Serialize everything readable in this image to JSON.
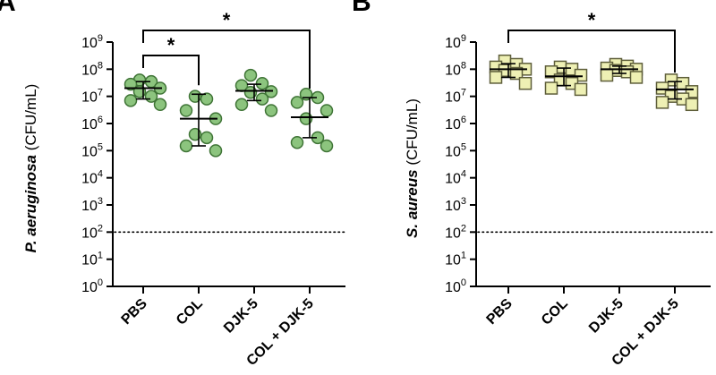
{
  "chart_data": [
    {
      "panel": "A",
      "type": "scatter",
      "ylabel_italic": "P. aeruginosa",
      "ylabel_rest": " (CFU/mL)",
      "yscale": "log",
      "ylim": [
        1,
        1000000000
      ],
      "yticks": [
        {
          "base": "10",
          "exp": "0",
          "value": 1
        },
        {
          "base": "10",
          "exp": "1",
          "value": 10
        },
        {
          "base": "10",
          "exp": "2",
          "value": 100
        },
        {
          "base": "10",
          "exp": "3",
          "value": 1000
        },
        {
          "base": "10",
          "exp": "4",
          "value": 10000
        },
        {
          "base": "10",
          "exp": "5",
          "value": 100000
        },
        {
          "base": "10",
          "exp": "6",
          "value": 1000000
        },
        {
          "base": "10",
          "exp": "7",
          "value": 10000000
        },
        {
          "base": "10",
          "exp": "8",
          "value": 100000000
        },
        {
          "base": "10",
          "exp": "9",
          "value": 1000000000
        }
      ],
      "categories": [
        "PBS",
        "COL",
        "DJK-5",
        "COL + DJK-5"
      ],
      "marker": "circle",
      "fill": "#8cc47e",
      "stroke": "#3f7436",
      "detection_limit": 100,
      "groups": [
        {
          "name": "PBS",
          "points": [
            40000000,
            35000000,
            28000000,
            20000000,
            15000000,
            10000000,
            7000000,
            5000000
          ],
          "center": 20000000,
          "err_low": 8000000,
          "err_high": 35000000
        },
        {
          "name": "COL",
          "points": [
            10000000,
            8000000,
            3000000,
            1500000,
            400000,
            300000,
            150000,
            100000
          ],
          "center": 1500000,
          "err_low": 150000,
          "err_high": 12000000
        },
        {
          "name": "DJK-5",
          "points": [
            60000000,
            30000000,
            25000000,
            15000000,
            14000000,
            8000000,
            5000000,
            3000000
          ],
          "center": 16000000,
          "err_low": 7000000,
          "err_high": 28000000
        },
        {
          "name": "COL + DJK-5",
          "points": [
            12000000,
            9000000,
            6000000,
            3000000,
            1500000,
            300000,
            200000,
            150000
          ],
          "center": 1700000,
          "err_low": 300000,
          "err_high": 9000000
        }
      ],
      "significance": [
        {
          "from": 0,
          "to": 3,
          "label": "*"
        },
        {
          "from": 0,
          "to": 1,
          "label": "*"
        }
      ]
    },
    {
      "panel": "B",
      "type": "scatter",
      "ylabel_italic": "S. aureus",
      "ylabel_rest": " (CFU/mL)",
      "yscale": "log",
      "ylim": [
        1,
        1000000000
      ],
      "yticks": [
        {
          "base": "10",
          "exp": "0",
          "value": 1
        },
        {
          "base": "10",
          "exp": "1",
          "value": 10
        },
        {
          "base": "10",
          "exp": "2",
          "value": 100
        },
        {
          "base": "10",
          "exp": "3",
          "value": 1000
        },
        {
          "base": "10",
          "exp": "4",
          "value": 10000
        },
        {
          "base": "10",
          "exp": "5",
          "value": 100000
        },
        {
          "base": "10",
          "exp": "6",
          "value": 1000000
        },
        {
          "base": "10",
          "exp": "7",
          "value": 10000000
        },
        {
          "base": "10",
          "exp": "8",
          "value": 100000000
        },
        {
          "base": "10",
          "exp": "9",
          "value": 1000000000
        }
      ],
      "categories": [
        "PBS",
        "COL",
        "DJK-5",
        "COL + DJK-5"
      ],
      "marker": "square",
      "fill": "#eef0b4",
      "stroke": "#5e5e3a",
      "detection_limit": 100,
      "groups": [
        {
          "name": "PBS",
          "points": [
            200000000,
            150000000,
            120000000,
            100000000,
            90000000,
            70000000,
            50000000,
            30000000
          ],
          "center": 100000000,
          "err_low": 50000000,
          "err_high": 160000000
        },
        {
          "name": "COL",
          "points": [
            120000000,
            100000000,
            80000000,
            60000000,
            40000000,
            30000000,
            20000000,
            18000000
          ],
          "center": 55000000,
          "err_low": 25000000,
          "err_high": 110000000
        },
        {
          "name": "DJK-5",
          "points": [
            150000000,
            130000000,
            110000000,
            100000000,
            90000000,
            80000000,
            60000000,
            50000000
          ],
          "center": 100000000,
          "err_low": 70000000,
          "err_high": 130000000
        },
        {
          "name": "COL + DJK-5",
          "points": [
            40000000,
            30000000,
            20000000,
            15000000,
            10000000,
            8000000,
            6000000,
            5000000
          ],
          "center": 18000000,
          "err_low": 8000000,
          "err_high": 35000000
        }
      ],
      "significance": [
        {
          "from": 0,
          "to": 3,
          "label": "*"
        }
      ]
    }
  ]
}
